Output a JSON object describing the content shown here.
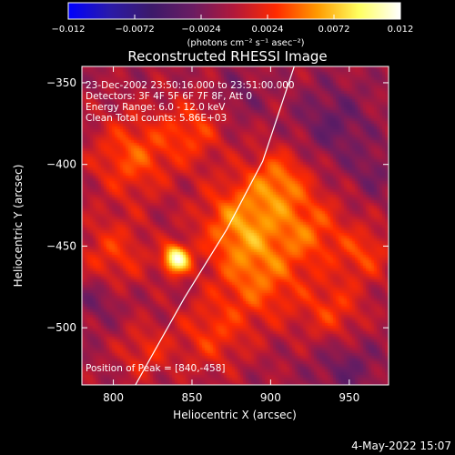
{
  "chart_data": {
    "type": "heatmap",
    "title": "Reconstructed RHESSI Image",
    "xlabel": "Heliocentric X (arcsec)",
    "ylabel": "Heliocentric Y (arcsec)",
    "xlim": [
      780,
      975
    ],
    "ylim": [
      -535,
      -340
    ],
    "x_ticks": [
      800,
      850,
      900,
      950
    ],
    "y_ticks": [
      -350,
      -400,
      -450,
      -500
    ],
    "x_tick_labels": [
      "800",
      "850",
      "900",
      "950"
    ],
    "y_tick_labels": [
      "−350",
      "−400",
      "−450",
      "−500"
    ],
    "colorbar": {
      "min": -0.012,
      "max": 0.012,
      "colormap": [
        "#0000ff",
        "#2a1aa8",
        "#3c1a6a",
        "#6a1c62",
        "#b2183a",
        "#ff2a00",
        "#ff9a00",
        "#ffff60",
        "#ffffff"
      ],
      "ticks": [
        -0.012,
        -0.0072,
        -0.0024,
        0.0024,
        0.0072,
        0.012
      ],
      "tick_labels": [
        "−0.012",
        "−0.0072",
        "−0.0024",
        "0.0024",
        "0.0072",
        "0.012"
      ],
      "unit_label": "(photons cm⁻² s⁻¹ asec⁻²)"
    },
    "annotations": [
      "23-Dec-2002 23:50:16.000 to 23:51:00.000",
      "Detectors: 3F 4F 5F 6F 7F 8F, Att 0",
      "Energy Range: 6.0 - 12.0 keV",
      "Clean     Total counts: 5.86E+03"
    ],
    "peak_label": "Position of Peak = [840,-458]",
    "peak": {
      "x": 840,
      "y": -458,
      "value": 0.012
    },
    "limb": [
      [
        915,
        -340
      ],
      [
        895,
        -398
      ],
      [
        872,
        -440
      ],
      [
        845,
        -482
      ],
      [
        814,
        -535
      ]
    ],
    "sources": [
      {
        "x": 840,
        "y": -458,
        "value": 0.0115,
        "sigma": 6
      },
      {
        "x": 880,
        "y": -435,
        "value": 0.0055,
        "sigma": 18
      },
      {
        "x": 905,
        "y": -410,
        "value": 0.0048,
        "sigma": 14
      },
      {
        "x": 893,
        "y": -470,
        "value": 0.0046,
        "sigma": 20
      },
      {
        "x": 925,
        "y": -440,
        "value": 0.0042,
        "sigma": 16
      },
      {
        "x": 812,
        "y": -395,
        "value": 0.0044,
        "sigma": 18
      },
      {
        "x": 850,
        "y": -380,
        "value": 0.0036,
        "sigma": 14
      },
      {
        "x": 800,
        "y": -455,
        "value": 0.0034,
        "sigma": 16
      },
      {
        "x": 862,
        "y": -505,
        "value": 0.0032,
        "sigma": 16
      },
      {
        "x": 940,
        "y": -490,
        "value": 0.0034,
        "sigma": 14
      },
      {
        "x": 960,
        "y": -455,
        "value": 0.0036,
        "sigma": 12
      },
      {
        "x": 820,
        "y": -515,
        "value": 0.0028,
        "sigma": 12
      },
      {
        "x": 940,
        "y": -375,
        "value": -0.0026,
        "sigma": 16
      },
      {
        "x": 948,
        "y": -525,
        "value": -0.0024,
        "sigma": 14
      },
      {
        "x": 790,
        "y": -482,
        "value": -0.0022,
        "sigma": 10
      },
      {
        "x": 965,
        "y": -405,
        "value": -0.0018,
        "sigma": 10
      },
      {
        "x": 880,
        "y": -357,
        "value": -0.0016,
        "sigma": 10
      }
    ]
  },
  "footer": {
    "timestamp": "4-May-2022 15:07"
  }
}
